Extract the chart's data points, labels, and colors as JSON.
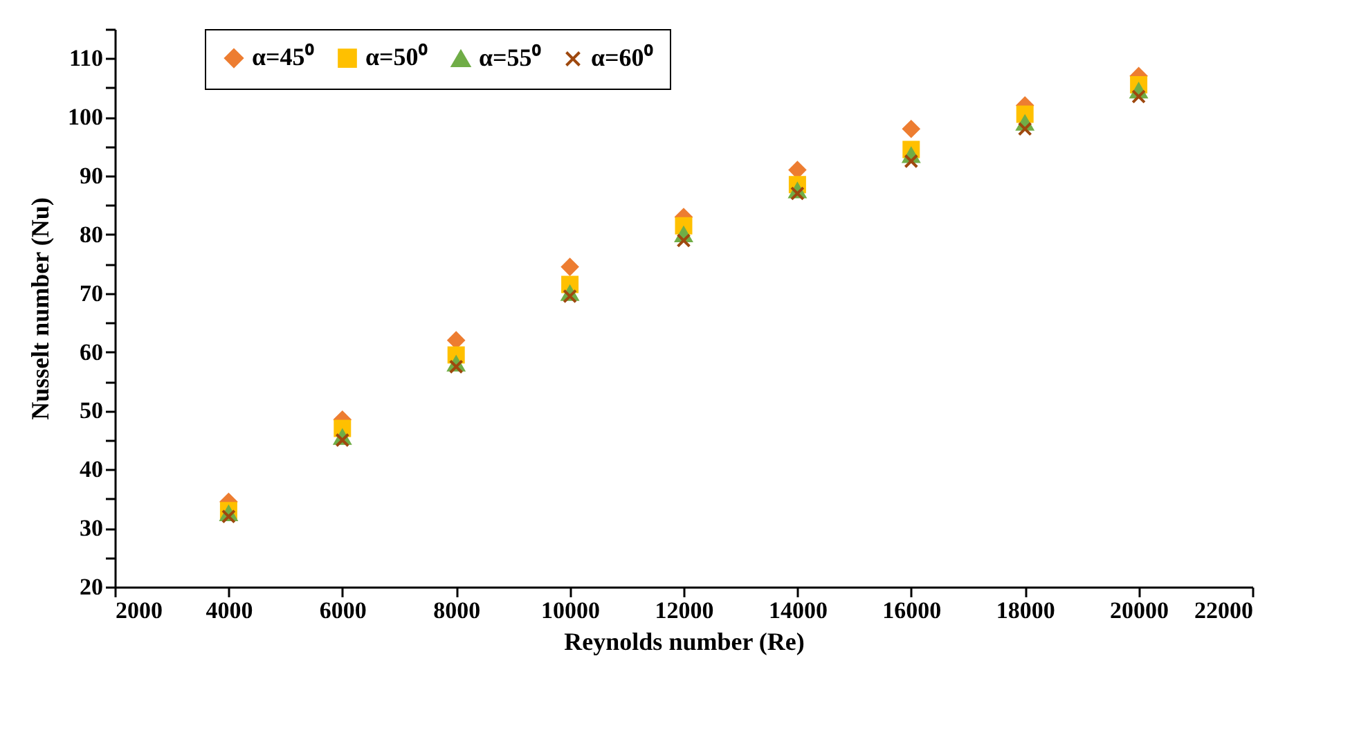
{
  "chart_data": {
    "type": "scatter",
    "xlabel": "Reynolds number (Re)",
    "ylabel": "Nusselt number (Nu)",
    "x": [
      4000,
      6000,
      8000,
      10000,
      12000,
      14000,
      16000,
      18000,
      20000
    ],
    "series": [
      {
        "name": "α=45⁰",
        "color": "#ed7d31",
        "marker": "diamond",
        "values": [
          34.5,
          48.5,
          62,
          74.5,
          83,
          91,
          98,
          102,
          107
        ]
      },
      {
        "name": "α=50⁰",
        "color": "#ffc000",
        "marker": "square",
        "values": [
          33,
          47,
          59.5,
          71.5,
          81.5,
          88.5,
          94.5,
          100.5,
          105.5
        ]
      },
      {
        "name": "α=55⁰",
        "color": "#70ad47",
        "marker": "triangle",
        "values": [
          32.5,
          45.5,
          58,
          70,
          80,
          87.5,
          93.5,
          99,
          104.5
        ]
      },
      {
        "name": "α=60⁰",
        "color": "#9e480e",
        "marker": "cross",
        "values": [
          32,
          45,
          57.5,
          69.5,
          79,
          87,
          92.5,
          98,
          103.5
        ]
      }
    ],
    "xlim": [
      2000,
      22000
    ],
    "xticks": [
      2000,
      4000,
      6000,
      8000,
      10000,
      12000,
      14000,
      16000,
      18000,
      20000,
      22000
    ],
    "ylim": [
      20,
      115
    ],
    "yticks": [
      20,
      {
        "value": 25,
        "label": null
      },
      30,
      {
        "value": 35,
        "label": null
      },
      40,
      {
        "value": 45,
        "label": null
      },
      50,
      {
        "value": 55,
        "label": null
      },
      60,
      {
        "value": 65,
        "label": null
      },
      70,
      {
        "value": 75,
        "label": null
      },
      80,
      {
        "value": 85,
        "label": null
      },
      90,
      {
        "value": 95,
        "label": null
      },
      100,
      {
        "value": 105,
        "label": null
      },
      110,
      {
        "value": 115,
        "label": null
      }
    ],
    "grid": false,
    "legend": "top left"
  }
}
